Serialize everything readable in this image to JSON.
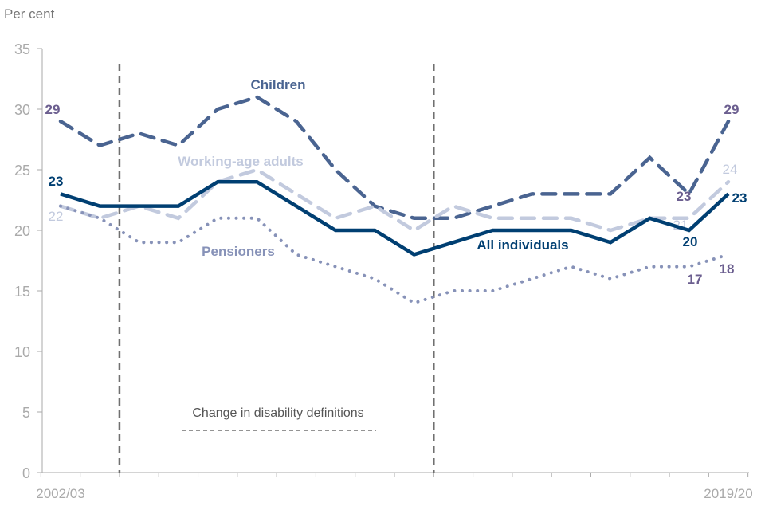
{
  "chart_data": {
    "type": "line",
    "ylabel": "Per cent",
    "ylim": [
      0,
      35
    ],
    "yticks": [
      0,
      5,
      10,
      15,
      20,
      25,
      30,
      35
    ],
    "x_tick_labels": [
      "2002/03",
      "2019/20"
    ],
    "x_count": 18,
    "grid": false,
    "series": [
      {
        "name": "Children",
        "color": "#4a6491",
        "style": "dashed",
        "values": [
          29,
          27,
          28,
          27,
          30,
          31,
          29,
          25,
          22,
          21,
          21,
          22,
          23,
          23,
          23,
          26,
          23,
          29
        ],
        "point_labels": [
          {
            "index": 0,
            "text": "29"
          },
          {
            "index": 16,
            "text": "23"
          },
          {
            "index": 17,
            "text": "29"
          }
        ]
      },
      {
        "name": "Working-age adults",
        "color": "#c2cade",
        "style": "dashed",
        "values": [
          22,
          21,
          22,
          21,
          24,
          25,
          23,
          21,
          22,
          20,
          22,
          21,
          21,
          21,
          20,
          21,
          21,
          24
        ],
        "point_labels": [
          {
            "index": 0,
            "text": "22"
          },
          {
            "index": 16,
            "text": "21"
          },
          {
            "index": 17,
            "text": "24"
          }
        ]
      },
      {
        "name": "All individuals",
        "color": "#003f72",
        "style": "solid",
        "values": [
          23,
          22,
          22,
          22,
          24,
          24,
          22,
          20,
          20,
          18,
          19,
          20,
          20,
          20,
          19,
          21,
          20,
          23
        ],
        "point_labels": [
          {
            "index": 0,
            "text": "23"
          },
          {
            "index": 16,
            "text": "20"
          },
          {
            "index": 17,
            "text": "23"
          }
        ]
      },
      {
        "name": "Pensioners",
        "color": "#8792b8",
        "style": "dotted",
        "values": [
          22,
          21,
          19,
          19,
          21,
          21,
          18,
          17,
          16,
          14,
          15,
          15,
          16,
          17,
          16,
          17,
          17,
          18
        ],
        "point_labels": [
          {
            "index": 16,
            "text": "17"
          },
          {
            "index": 17,
            "text": "18"
          }
        ]
      }
    ],
    "annotation": {
      "text": "Change in disability definitions",
      "breaks_after_index": [
        1,
        9
      ]
    }
  },
  "label_colors": {
    "value_purple": "#6b5e8f",
    "axis": "#aaaaaa",
    "break_line": "#707070"
  }
}
